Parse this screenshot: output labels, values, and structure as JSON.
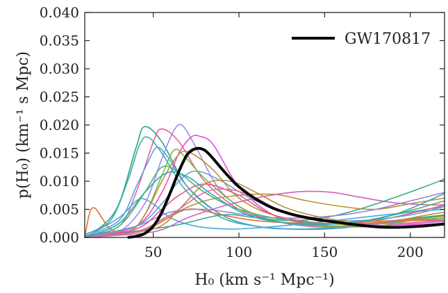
{
  "chart_data": {
    "type": "line",
    "xlabel": "H₀ (km s⁻¹ Mpc⁻¹)",
    "ylabel": "p(H₀) (km⁻¹ s Mpc)",
    "xlim": [
      10,
      220
    ],
    "ylim": [
      0,
      0.04
    ],
    "x_ticks": [
      50,
      100,
      150,
      200
    ],
    "x_tick_labels": [
      "50",
      "100",
      "150",
      "200"
    ],
    "y_ticks": [
      0,
      0.005,
      0.01,
      0.015,
      0.02,
      0.025,
      0.03,
      0.035,
      0.04
    ],
    "y_tick_labels": [
      "0.000",
      "0.005",
      "0.010",
      "0.015",
      "0.020",
      "0.025",
      "0.030",
      "0.035",
      "0.040"
    ],
    "grid": false,
    "legend_position": "top-right",
    "series": [
      {
        "name": "GW170817",
        "color": "#000000",
        "highlight": true,
        "x": [
          35,
          40,
          45,
          50,
          55,
          60,
          65,
          70,
          75,
          80,
          85,
          90,
          95,
          100,
          110,
          120,
          130,
          140,
          150,
          160,
          170,
          180,
          190,
          200,
          210,
          220
        ],
        "y": [
          0.0,
          0.0002,
          0.0007,
          0.002,
          0.0045,
          0.008,
          0.0118,
          0.0148,
          0.0158,
          0.0155,
          0.014,
          0.0122,
          0.0105,
          0.009,
          0.0068,
          0.0052,
          0.0042,
          0.0035,
          0.003,
          0.0026,
          0.0022,
          0.0019,
          0.0018,
          0.0019,
          0.0021,
          0.0024
        ]
      },
      {
        "color": "#2ca089",
        "x": [
          10,
          20,
          30,
          40,
          45,
          55,
          70,
          90,
          110,
          130,
          150,
          170,
          190,
          220
        ],
        "y": [
          0.0005,
          0.002,
          0.006,
          0.016,
          0.0197,
          0.017,
          0.009,
          0.004,
          0.002,
          0.0015,
          0.0015,
          0.002,
          0.003,
          0.004
        ]
      },
      {
        "color": "#e8609a",
        "x": [
          10,
          30,
          40,
          50,
          55,
          65,
          80,
          100,
          120,
          140,
          160,
          180,
          200,
          220
        ],
        "y": [
          0.0003,
          0.002,
          0.008,
          0.017,
          0.0193,
          0.017,
          0.01,
          0.005,
          0.003,
          0.002,
          0.002,
          0.0025,
          0.003,
          0.003
        ]
      },
      {
        "color": "#a48ae8",
        "x": [
          10,
          30,
          45,
          55,
          62,
          67,
          75,
          90,
          110,
          130,
          150,
          180,
          200,
          220
        ],
        "y": [
          0.0,
          0.001,
          0.006,
          0.014,
          0.019,
          0.0199,
          0.016,
          0.008,
          0.004,
          0.0025,
          0.002,
          0.002,
          0.0025,
          0.0028
        ]
      },
      {
        "color": "#e84fd8",
        "x": [
          10,
          40,
          55,
          65,
          72,
          77,
          85,
          100,
          120,
          140,
          160,
          190,
          220
        ],
        "y": [
          0.0,
          0.002,
          0.008,
          0.015,
          0.0178,
          0.018,
          0.0165,
          0.009,
          0.004,
          0.0025,
          0.002,
          0.0022,
          0.0025
        ]
      },
      {
        "color": "#3ab0a0",
        "x": [
          10,
          25,
          35,
          42,
          47,
          55,
          70,
          90,
          110,
          130,
          160,
          190,
          220
        ],
        "y": [
          0.0005,
          0.003,
          0.01,
          0.0165,
          0.0178,
          0.015,
          0.008,
          0.0035,
          0.002,
          0.0015,
          0.002,
          0.004,
          0.0055
        ]
      },
      {
        "color": "#5aa0e0",
        "x": [
          10,
          30,
          40,
          47,
          52,
          58,
          70,
          90,
          110,
          140,
          170,
          200,
          220
        ],
        "y": [
          0.0002,
          0.003,
          0.009,
          0.0135,
          0.016,
          0.0145,
          0.009,
          0.004,
          0.002,
          0.0015,
          0.002,
          0.003,
          0.0035
        ]
      },
      {
        "color": "#6fbf40",
        "x": [
          10,
          35,
          45,
          55,
          62,
          68,
          80,
          100,
          120,
          150,
          180,
          200,
          220
        ],
        "y": [
          0.0,
          0.001,
          0.004,
          0.011,
          0.0155,
          0.0145,
          0.0105,
          0.0055,
          0.003,
          0.002,
          0.002,
          0.003,
          0.0035
        ]
      },
      {
        "color": "#c09030",
        "x": [
          10,
          35,
          45,
          55,
          65,
          72,
          85,
          100,
          120,
          150,
          180,
          210,
          220
        ],
        "y": [
          0.0,
          0.001,
          0.004,
          0.01,
          0.0148,
          0.015,
          0.012,
          0.007,
          0.004,
          0.0025,
          0.0025,
          0.004,
          0.0045
        ]
      },
      {
        "color": "#e07030",
        "x": [
          10,
          13,
          16,
          20,
          25,
          35,
          50,
          70,
          90,
          110,
          140,
          170,
          200,
          220
        ],
        "y": [
          0.0,
          0.0045,
          0.0052,
          0.0035,
          0.0015,
          0.0008,
          0.002,
          0.005,
          0.004,
          0.003,
          0.0025,
          0.0025,
          0.003,
          0.0032
        ]
      },
      {
        "color": "#4aa8d8",
        "x": [
          10,
          30,
          40,
          45,
          52,
          60,
          75,
          95,
          115,
          140,
          170,
          200,
          220
        ],
        "y": [
          0.0,
          0.0035,
          0.0065,
          0.0068,
          0.0055,
          0.0035,
          0.002,
          0.0015,
          0.0018,
          0.0025,
          0.0035,
          0.0045,
          0.005
        ]
      },
      {
        "color": "#c09030",
        "x": [
          10,
          40,
          60,
          80,
          100,
          115,
          125,
          140,
          160,
          180,
          200,
          220
        ],
        "y": [
          0.0,
          0.001,
          0.004,
          0.0065,
          0.0075,
          0.0077,
          0.0075,
          0.0065,
          0.0055,
          0.005,
          0.006,
          0.007
        ]
      },
      {
        "color": "#d060c0",
        "x": [
          10,
          50,
          70,
          90,
          110,
          125,
          140,
          155,
          170,
          190,
          210,
          220
        ],
        "y": [
          0.0,
          0.001,
          0.0035,
          0.0055,
          0.007,
          0.0078,
          0.0082,
          0.008,
          0.0072,
          0.0062,
          0.0058,
          0.0058
        ]
      },
      {
        "color": "#3aa890",
        "x": [
          10,
          60,
          90,
          110,
          130,
          150,
          170,
          190,
          210,
          220
        ],
        "y": [
          0.0,
          0.002,
          0.004,
          0.0035,
          0.003,
          0.0035,
          0.005,
          0.007,
          0.0092,
          0.0104
        ]
      },
      {
        "color": "#9a80d8",
        "x": [
          10,
          40,
          60,
          80,
          100,
          120,
          140,
          160,
          180,
          200,
          220
        ],
        "y": [
          0.0,
          0.002,
          0.0045,
          0.005,
          0.0042,
          0.0035,
          0.0035,
          0.004,
          0.005,
          0.0065,
          0.008
        ]
      },
      {
        "color": "#e05a8a",
        "x": [
          10,
          40,
          55,
          65,
          80,
          100,
          120,
          150,
          180,
          210,
          220
        ],
        "y": [
          0.0,
          0.0015,
          0.005,
          0.0075,
          0.0095,
          0.0075,
          0.004,
          0.0025,
          0.003,
          0.005,
          0.0058
        ]
      },
      {
        "color": "#50b070",
        "x": [
          10,
          30,
          45,
          55,
          65,
          80,
          100,
          130,
          160,
          190,
          220
        ],
        "y": [
          0.0,
          0.002,
          0.008,
          0.0125,
          0.0115,
          0.008,
          0.005,
          0.003,
          0.0025,
          0.004,
          0.0065
        ]
      },
      {
        "color": "#6aa0d8",
        "x": [
          10,
          40,
          55,
          65,
          75,
          90,
          110,
          140,
          170,
          200,
          220
        ],
        "y": [
          0.0,
          0.002,
          0.006,
          0.01,
          0.0118,
          0.01,
          0.0065,
          0.0035,
          0.003,
          0.004,
          0.0055
        ]
      },
      {
        "color": "#b09040",
        "x": [
          10,
          50,
          65,
          80,
          95,
          110,
          130,
          160,
          190,
          220
        ],
        "y": [
          0.0,
          0.0015,
          0.005,
          0.0095,
          0.01,
          0.008,
          0.005,
          0.003,
          0.003,
          0.0038
        ]
      },
      {
        "color": "#30a8b0",
        "x": [
          10,
          30,
          45,
          58,
          70,
          85,
          105,
          130,
          160,
          190,
          220
        ],
        "y": [
          0.0,
          0.0025,
          0.008,
          0.0115,
          0.0108,
          0.0075,
          0.004,
          0.0025,
          0.0025,
          0.004,
          0.0078
        ]
      },
      {
        "color": "#e06aa8",
        "x": [
          10,
          40,
          60,
          80,
          95,
          110,
          130,
          160,
          190,
          220
        ],
        "y": [
          0.0,
          0.001,
          0.004,
          0.008,
          0.0085,
          0.007,
          0.004,
          0.0025,
          0.0025,
          0.003
        ]
      }
    ]
  }
}
